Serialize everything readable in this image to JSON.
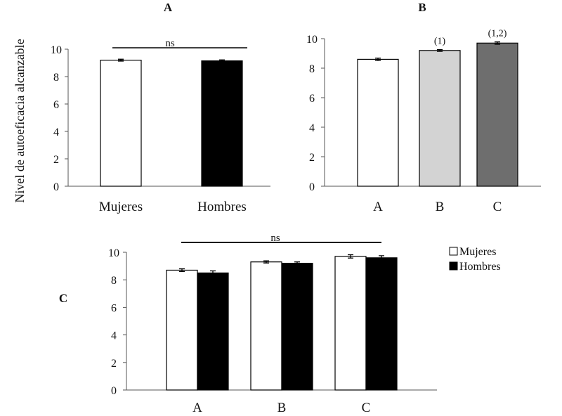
{
  "ylabel": "Nivel de autoeficacia alcanzable",
  "chart_data": [
    {
      "type": "bar",
      "panel": "A",
      "categories": [
        "Mujeres",
        "Hombres"
      ],
      "values": [
        9.2,
        9.15
      ],
      "errors": [
        0.07,
        0.07
      ],
      "colors": [
        "#ffffff",
        "#000000"
      ],
      "ylim": [
        0,
        10
      ],
      "yticks": [
        0,
        2,
        4,
        6,
        8,
        10
      ],
      "significance": {
        "label": "ns",
        "from": 0,
        "to": 1
      }
    },
    {
      "type": "bar",
      "panel": "B",
      "categories": [
        "A",
        "B",
        "C"
      ],
      "values": [
        8.6,
        9.2,
        9.7
      ],
      "errors": [
        0.08,
        0.06,
        0.08
      ],
      "colors": [
        "#ffffff",
        "#d3d3d3",
        "#6e6e6e"
      ],
      "annotations": [
        "",
        "(1)",
        "(1,2)"
      ],
      "ylim": [
        0,
        10
      ],
      "yticks": [
        0,
        2,
        4,
        6,
        8,
        10
      ]
    },
    {
      "type": "bar",
      "panel": "C",
      "categories": [
        "A",
        "B",
        "C"
      ],
      "series": [
        {
          "name": "Mujeres",
          "values": [
            8.7,
            9.3,
            9.7
          ],
          "errors": [
            0.1,
            0.08,
            0.12
          ],
          "color": "#ffffff"
        },
        {
          "name": "Hombres",
          "values": [
            8.5,
            9.2,
            9.6
          ],
          "errors": [
            0.15,
            0.1,
            0.15
          ],
          "color": "#000000"
        }
      ],
      "ylim": [
        0,
        10
      ],
      "yticks": [
        0,
        2,
        4,
        6,
        8,
        10
      ],
      "legend": "top-right",
      "significance": {
        "label": "ns",
        "from": 0,
        "to": 2
      }
    }
  ]
}
